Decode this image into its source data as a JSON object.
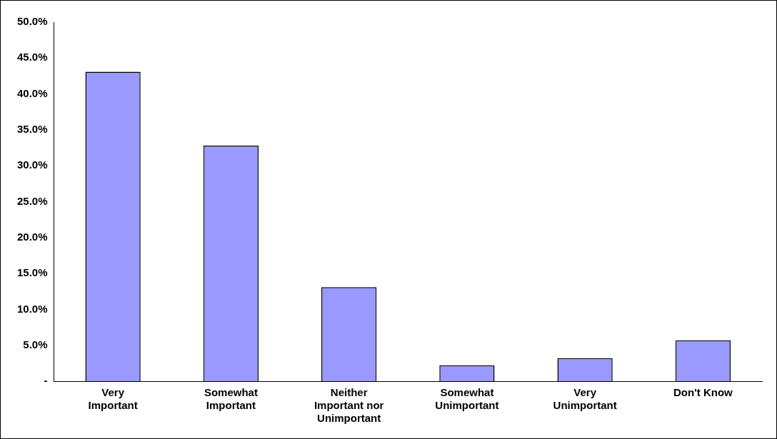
{
  "chart_data": {
    "type": "bar",
    "categories": [
      "Very Important",
      "Somewhat Important",
      "Neither Important nor Unimportant",
      "Somewhat Unimportant",
      "Very Unimportant",
      "Don't Know"
    ],
    "values": [
      43.1,
      32.8,
      13.1,
      2.2,
      3.2,
      5.7
    ],
    "color": "#9999ff",
    "ylim": [
      0,
      50
    ],
    "yticks": [
      {
        "value": 0,
        "label": "-"
      },
      {
        "value": 5,
        "label": "5.0%"
      },
      {
        "value": 10,
        "label": "10.0%"
      },
      {
        "value": 15,
        "label": "15.0%"
      },
      {
        "value": 20,
        "label": "20.0%"
      },
      {
        "value": 25,
        "label": "25.0%"
      },
      {
        "value": 30,
        "label": "30.0%"
      },
      {
        "value": 35,
        "label": "35.0%"
      },
      {
        "value": 40,
        "label": "40.0%"
      },
      {
        "value": 45,
        "label": "45.0%"
      },
      {
        "value": 50,
        "label": "50.0%"
      }
    ],
    "grid": false,
    "legend": false
  }
}
